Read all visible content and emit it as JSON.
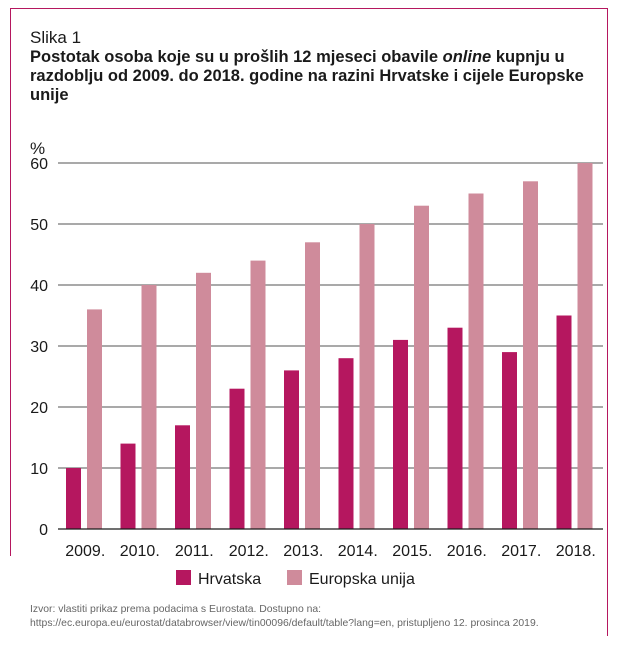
{
  "caption": "Slika 1",
  "title": {
    "part1": "Postotak osoba koje su u prošlih 12 mjeseci obavile ",
    "emph": "online",
    "part2": " kupnju u razdoblju od 2009. do 2018. godine na razini Hrvatske i cijele Europske unije"
  },
  "source_line1": "Izvor: vlastiti prikaz prema podacima s Eurostata. Dostupno na:",
  "source_line2": "https://ec.europa.eu/eurostat/databrowser/view/tin00096/default/table?lang=en, pristupljeno 12. prosinca 2019.",
  "colors": {
    "hrvatska": "#b5175f",
    "eu": "#cf8b9b",
    "frame": "#b5175f"
  },
  "chart_data": {
    "type": "bar",
    "ylabel": "%",
    "xlabel": "",
    "ylim": [
      0,
      60
    ],
    "yticks": [
      "0",
      "10",
      "20",
      "30",
      "40",
      "50",
      "60"
    ],
    "grid": true,
    "legend": "bottom",
    "categories": [
      "2009.",
      "2010.",
      "2011.",
      "2012.",
      "2013.",
      "2014.",
      "2015.",
      "2016.",
      "2017.",
      "2018."
    ],
    "series": [
      {
        "name": "Hrvatska",
        "values": [
          10,
          14,
          17,
          23,
          26,
          28,
          31,
          33,
          29,
          35
        ]
      },
      {
        "name": "Europska unija",
        "values": [
          36,
          40,
          42,
          44,
          47,
          50,
          53,
          55,
          57,
          60
        ]
      }
    ]
  }
}
